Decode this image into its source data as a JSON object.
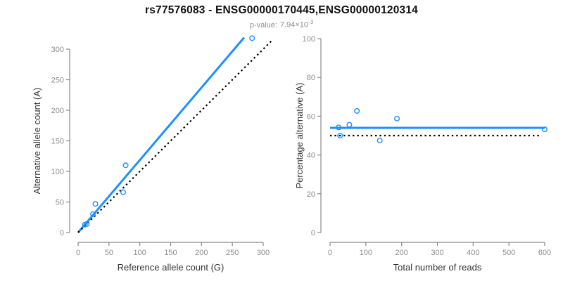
{
  "header": {
    "title": "rs77576083 - ENSG00000170445,ENSG00000120314",
    "p_value_label": "p-value:",
    "p_value_base": "7.94×10",
    "p_value_exponent": "-3"
  },
  "colors": {
    "accent_blue": "#1E90FF",
    "dotted_black": "#000000",
    "axis_line_gray": "#888888",
    "tick_label_gray": "#8c8c8c"
  },
  "chart_data": [
    {
      "type": "scatter",
      "panel": "left",
      "xlabel": "Reference allele count (G)",
      "ylabel": "Alternative allele count (A)",
      "xlim": [
        0,
        300
      ],
      "ylim": [
        0,
        300
      ],
      "x_ticks": [
        0,
        50,
        100,
        150,
        200,
        250,
        300
      ],
      "y_ticks": [
        0,
        50,
        100,
        150,
        200,
        250,
        300
      ],
      "grid": false,
      "points": [
        [
          11,
          13
        ],
        [
          14,
          14
        ],
        [
          24,
          30
        ],
        [
          28,
          47
        ],
        [
          73,
          66
        ],
        [
          77,
          110
        ],
        [
          282,
          318
        ]
      ],
      "lines": [
        {
          "name": "fit-line",
          "style": "solid",
          "color": "#1E90FF",
          "width": 3,
          "from": [
            0,
            0
          ],
          "to": [
            269,
            319
          ]
        },
        {
          "name": "identity-line",
          "style": "dotted",
          "color": "#000000",
          "width": 2.2,
          "from": [
            0,
            0
          ],
          "to": [
            316,
            316
          ]
        }
      ]
    },
    {
      "type": "scatter",
      "panel": "right",
      "xlabel": "Total number of reads",
      "ylabel": "Percentage alternative (A)",
      "xlim": [
        0,
        600
      ],
      "ylim": [
        0,
        100
      ],
      "x_ticks": [
        0,
        100,
        200,
        300,
        400,
        500,
        600
      ],
      "y_ticks": [
        0,
        20,
        40,
        60,
        80,
        100
      ],
      "grid": false,
      "points": [
        [
          24,
          54.2
        ],
        [
          28,
          50
        ],
        [
          54,
          55.6
        ],
        [
          75,
          62.7
        ],
        [
          139,
          47.5
        ],
        [
          187,
          58.8
        ],
        [
          600,
          53.2
        ]
      ],
      "lines": [
        {
          "name": "mean-line",
          "style": "solid",
          "color": "#1E90FF",
          "width": 3,
          "from": [
            0,
            54
          ],
          "to": [
            600,
            54
          ]
        },
        {
          "name": "null-line",
          "style": "dotted",
          "color": "#000000",
          "width": 2.2,
          "from": [
            0,
            50
          ],
          "to": [
            592,
            50
          ]
        }
      ]
    }
  ]
}
